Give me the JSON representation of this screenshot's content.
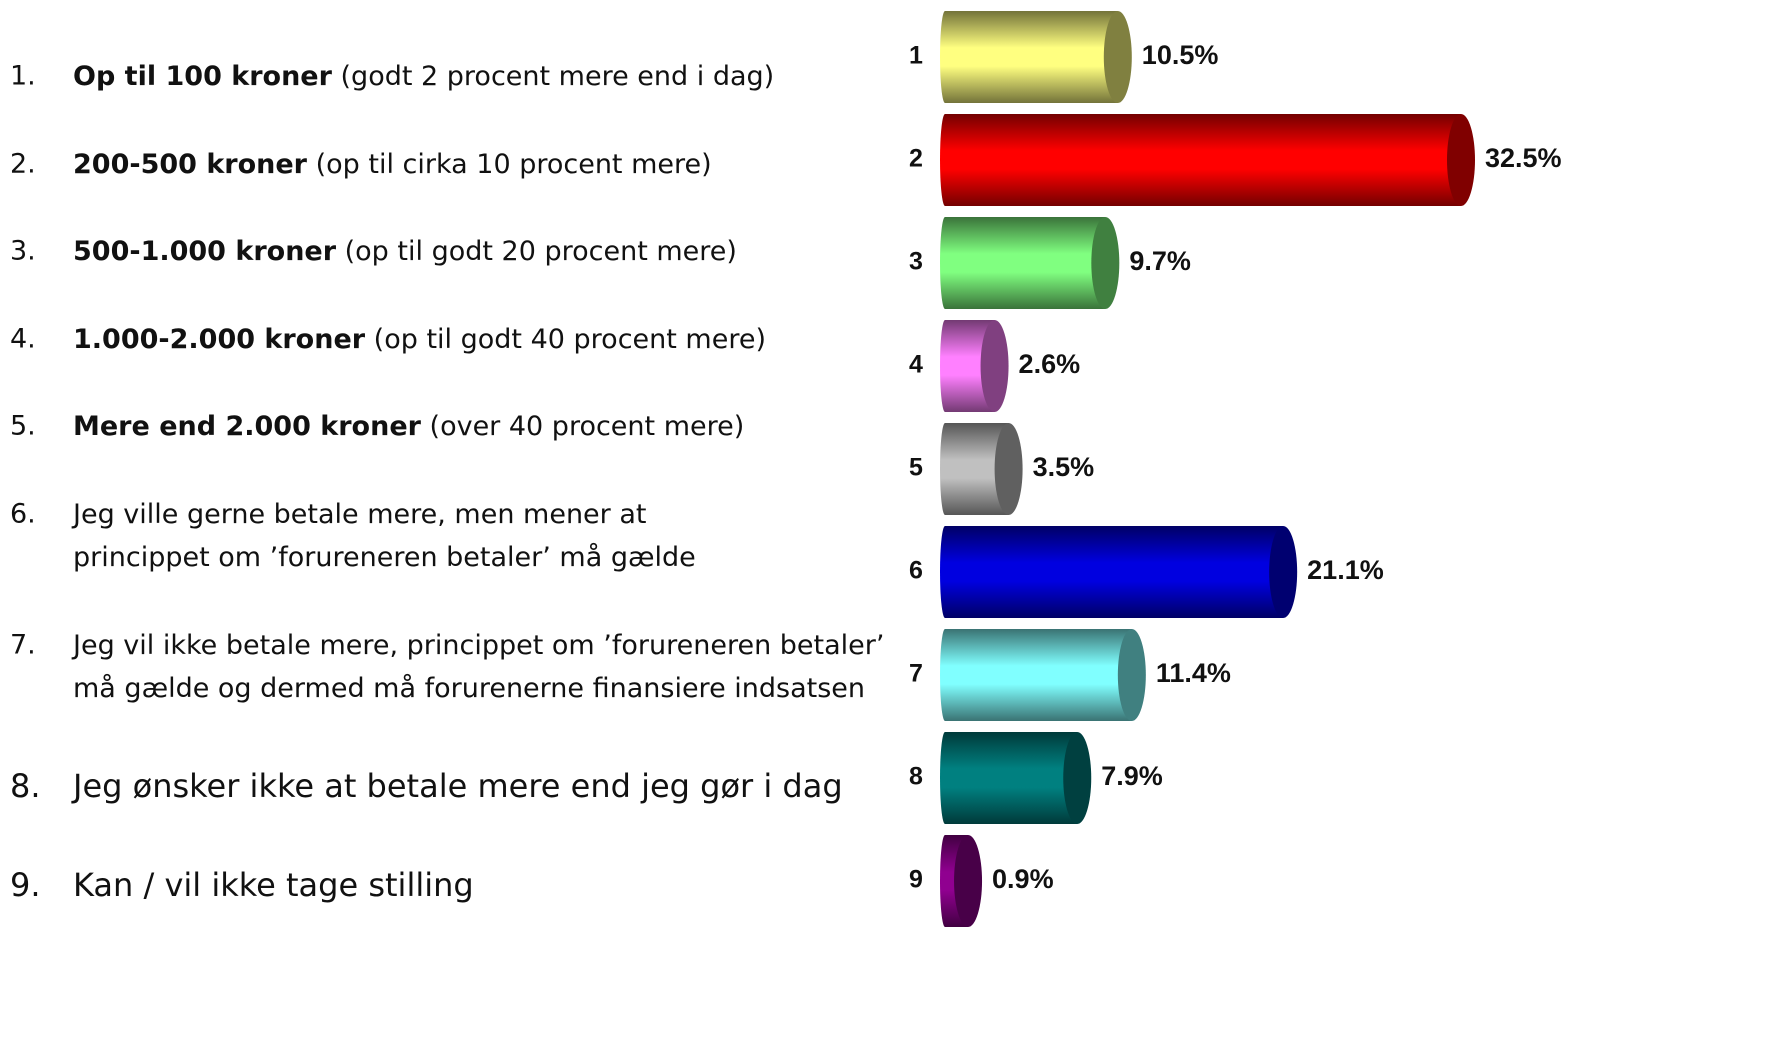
{
  "items": [
    {
      "number": "1.",
      "bold": "Op til 100 kroner",
      "lines": [
        " (godt 2 procent mere end i dag)"
      ]
    },
    {
      "number": "2.",
      "bold": "200-500 kroner",
      "lines": [
        " (op til cirka 10 procent mere)"
      ]
    },
    {
      "number": "3.",
      "bold": "500-1.000 kroner",
      "lines": [
        " (op til godt 20 procent mere)"
      ]
    },
    {
      "number": "4.",
      "bold": "1.000-2.000 kroner",
      "lines": [
        " (op til godt 40 procent mere)"
      ]
    },
    {
      "number": "5.",
      "bold": "Mere end 2.000 kroner",
      "lines": [
        " (over 40 procent mere)"
      ]
    },
    {
      "number": "6.",
      "lines": [
        "Jeg ville gerne betale mere, men mener at",
        "princippet om ’forureneren betaler’ må gælde"
      ]
    },
    {
      "number": "7.",
      "lines": [
        "Jeg vil ikke betale mere, princippet om ’forureneren betaler’",
        "må gælde og dermed må forurenerne finansiere indsatsen"
      ]
    },
    {
      "number": "8.",
      "lines": [
        "Jeg ønsker ikke at betale mere end jeg gør i dag"
      ]
    },
    {
      "number": "9.",
      "lines": [
        "Kan / vil ikke tage stilling"
      ]
    }
  ],
  "chart_data": {
    "type": "bar",
    "orientation": "horizontal",
    "categories": [
      "1",
      "2",
      "3",
      "4",
      "5",
      "6",
      "7",
      "8",
      "9"
    ],
    "values": [
      10.5,
      32.5,
      9.7,
      2.6,
      3.5,
      21.1,
      11.4,
      7.9,
      0.9
    ],
    "value_labels": [
      "10.5%",
      "32.5%",
      "9.7%",
      "2.6%",
      "3.5%",
      "21.1%",
      "11.4%",
      "7.9%",
      "0.9%"
    ],
    "colors": [
      "#ffff80",
      "#ff0000",
      "#80ff80",
      "#ff80ff",
      "#c0c0c0",
      "#0000e0",
      "#80ffff",
      "#008080",
      "#900090"
    ]
  }
}
